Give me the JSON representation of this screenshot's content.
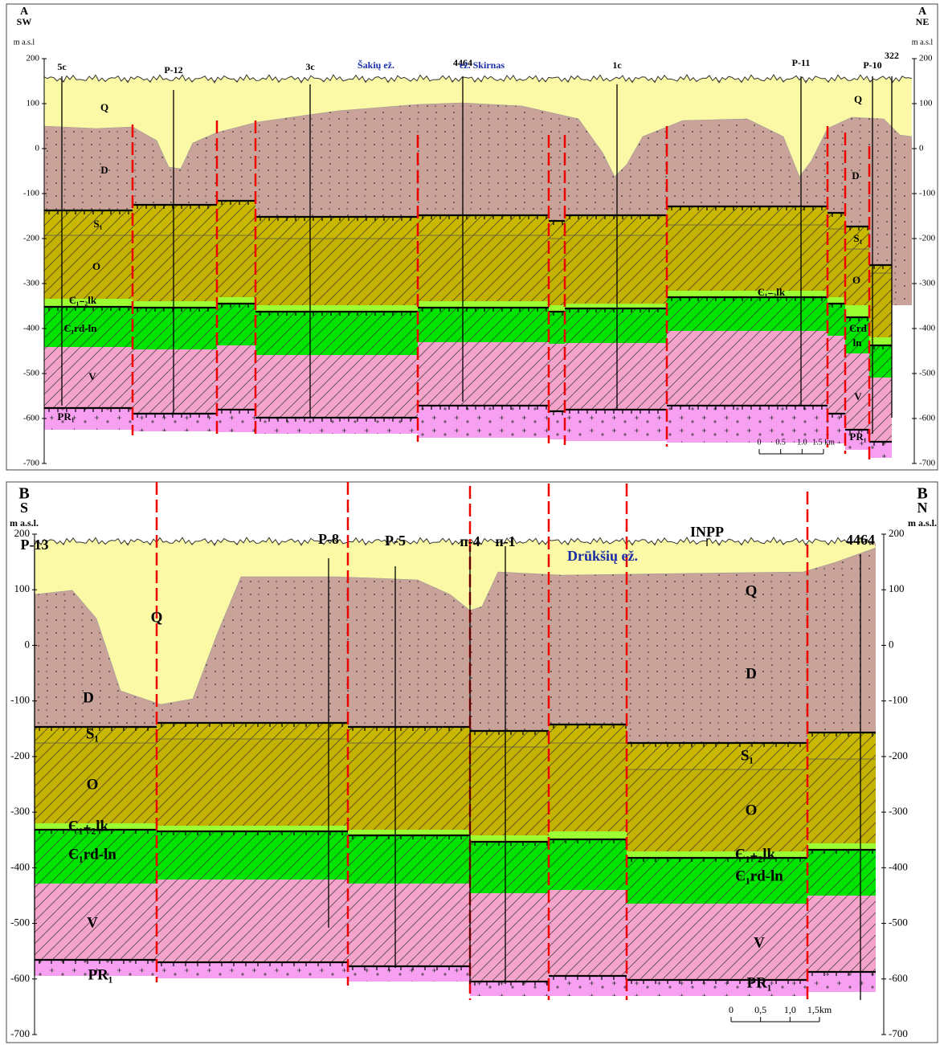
{
  "section_a": {
    "left_label": "A",
    "left_direction": "SW",
    "left_unit": "m a.s.l",
    "right_label": "A",
    "right_direction": "NE",
    "right_unit": "m a.s.l",
    "ylim": [
      -700,
      200
    ],
    "yticks": [
      200,
      100,
      0,
      -100,
      -200,
      -300,
      -400,
      -500,
      -600,
      -700
    ],
    "wells": [
      "5c",
      "P-12",
      "3c",
      "4464",
      "1c",
      "P-11",
      "P-10",
      "322"
    ],
    "lakes": [
      "Šakių ež.",
      "ež. Skirnas"
    ],
    "unit_labels": [
      "Q",
      "D",
      "S₁",
      "O",
      "Є₁₋₂lk",
      "Є₁rd-ln",
      "V",
      "PR₁",
      "Q",
      "D",
      "S₁",
      "O",
      "Є₁₋₂lk",
      "Єrd",
      "ln",
      "V",
      "PR₁"
    ],
    "scale_bar": [
      "0",
      "0.5",
      "1.0",
      "1.5 km"
    ]
  },
  "section_b": {
    "left_label": "B",
    "left_direction": "S",
    "left_unit": "m a.s.l.",
    "right_label": "B",
    "right_direction": "N",
    "right_unit": "m a.s.l.",
    "ylim": [
      -700,
      200
    ],
    "yticks": [
      200,
      100,
      0,
      -100,
      -200,
      -300,
      -400,
      -500,
      -600,
      -700
    ],
    "wells": [
      "P-13",
      "P-8",
      "P-5",
      "п-4",
      "п-1",
      "INPP",
      "4464"
    ],
    "lakes": [
      "Drūkšių ež."
    ],
    "unit_labels": [
      "Q",
      "Q",
      "D",
      "D",
      "S₁",
      "S₁",
      "O",
      "O",
      "Є₁₊₂lk",
      "Є₁₊₂lk",
      "Є₁rd-ln",
      "Є₁rd-ln",
      "V",
      "V",
      "PR₁",
      "PR₁"
    ],
    "scale_bar": [
      "0",
      "0,5",
      "1,0",
      "1,5km"
    ]
  }
}
